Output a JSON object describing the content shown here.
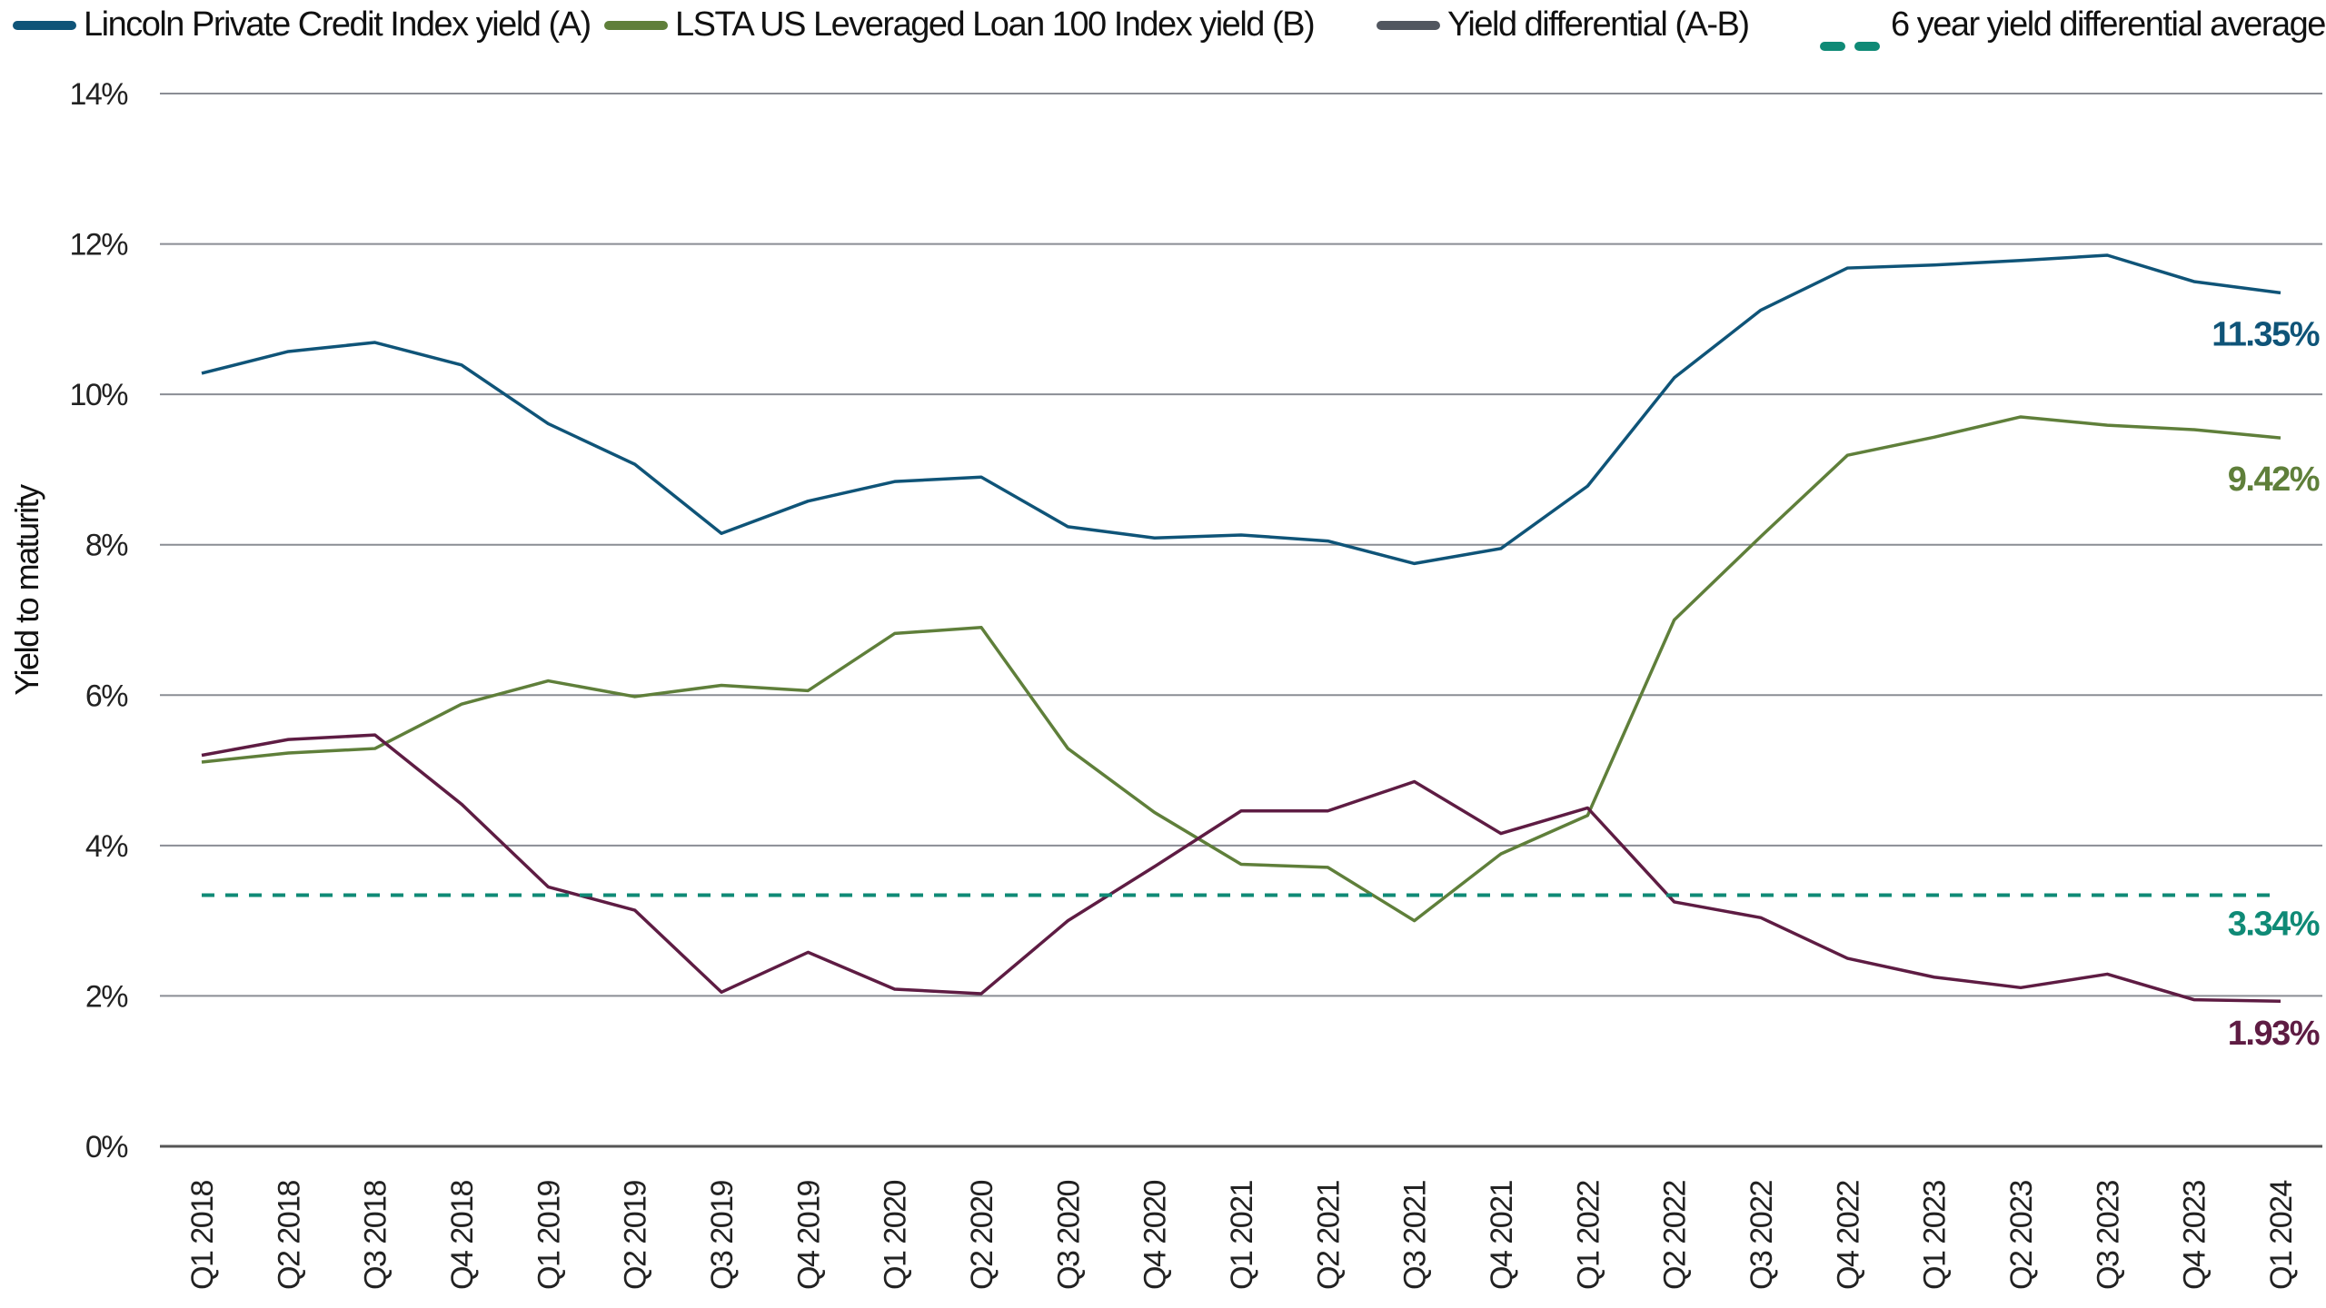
{
  "chart_data": {
    "type": "line",
    "ylabel": "Yield to maturity",
    "xlabel": "",
    "ylim": [
      0,
      14
    ],
    "yticks": [
      "0%",
      "2%",
      "4%",
      "6%",
      "8%",
      "10%",
      "12%",
      "14%"
    ],
    "grid": "horizontal",
    "legend_placement": "top",
    "categories": [
      "Q1 2018",
      "Q2 2018",
      "Q3 2018",
      "Q4 2018",
      "Q1 2019",
      "Q2 2019",
      "Q3 2019",
      "Q4 2019",
      "Q1 2020",
      "Q2 2020",
      "Q3 2020",
      "Q4 2020",
      "Q1 2021",
      "Q2 2021",
      "Q3 2021",
      "Q4 2021",
      "Q1 2022",
      "Q2 2022",
      "Q3 2022",
      "Q4 2022",
      "Q1 2023",
      "Q2 2023",
      "Q3 2023",
      "Q4 2023",
      "Q1 2024"
    ],
    "series": [
      {
        "name": "Lincoln Private Credit Index yield (A)",
        "color": "#0f5478",
        "legend_color": "#0f5478",
        "end_label": "11.35%",
        "values": [
          10.28,
          10.57,
          10.69,
          10.39,
          9.61,
          9.07,
          8.15,
          8.58,
          8.84,
          8.9,
          8.24,
          8.09,
          8.13,
          8.05,
          7.75,
          7.95,
          8.78,
          10.22,
          11.12,
          11.68,
          11.72,
          11.78,
          11.85,
          11.5,
          11.35
        ]
      },
      {
        "name": "LSTA US Leveraged Loan 100 Index yield (B)",
        "color": "#5f7f3a",
        "legend_color": "#5f7f3a",
        "end_label": "9.42%",
        "values": [
          5.11,
          5.23,
          5.29,
          5.88,
          6.19,
          5.98,
          6.13,
          6.06,
          6.82,
          6.9,
          5.29,
          4.44,
          3.75,
          3.71,
          3.0,
          3.89,
          4.4,
          7.0,
          8.11,
          9.19,
          9.43,
          9.7,
          9.59,
          9.53,
          9.42
        ]
      },
      {
        "name": "Yield differential (A-B)",
        "color": "#5e1c43",
        "legend_color": "#51565f",
        "end_label": "1.93%",
        "values": [
          5.2,
          5.41,
          5.47,
          4.55,
          3.45,
          3.14,
          2.05,
          2.58,
          2.09,
          2.03,
          3.0,
          3.72,
          4.46,
          4.46,
          4.85,
          4.16,
          4.5,
          3.25,
          3.04,
          2.5,
          2.25,
          2.11,
          2.29,
          1.95,
          1.93
        ]
      },
      {
        "name": "6 year yield differential average",
        "color": "#0f8a76",
        "legend_color": "#0f8a76",
        "dashed": true,
        "end_label": "3.34%",
        "constant": 3.34
      }
    ]
  }
}
